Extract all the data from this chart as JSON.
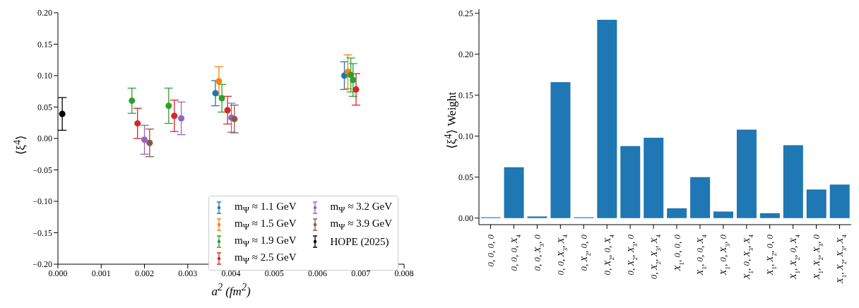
{
  "chart_data": [
    {
      "type": "scatter",
      "xlabel": "a$^{2}$ (fm$^{2}$)",
      "ylabel": "⟨ξ$^{4}$⟩",
      "xlim": [
        0,
        0.008
      ],
      "ylim": [
        -0.2,
        0.2
      ],
      "xticks": [
        {
          "value": 0,
          "label": "0.000"
        },
        {
          "value": 0.001,
          "label": "0.001"
        },
        {
          "value": 0.002,
          "label": "0.002"
        },
        {
          "value": 0.003,
          "label": "0.003"
        },
        {
          "value": 0.004,
          "label": "0.004"
        },
        {
          "value": 0.005,
          "label": "0.005"
        },
        {
          "value": 0.006,
          "label": "0.006"
        },
        {
          "value": 0.007,
          "label": "0.007"
        },
        {
          "value": 0.008,
          "label": "0.008"
        }
      ],
      "yticks": [
        {
          "value": -0.2,
          "label": "−0.20"
        },
        {
          "value": -0.15,
          "label": "−0.15"
        },
        {
          "value": -0.1,
          "label": "−0.10"
        },
        {
          "value": -0.05,
          "label": "−0.05"
        },
        {
          "value": 0,
          "label": "0.00"
        },
        {
          "value": 0.05,
          "label": "0.05"
        },
        {
          "value": 0.1,
          "label": "0.10"
        },
        {
          "value": 0.15,
          "label": "0.15"
        },
        {
          "value": 0.2,
          "label": "0.20"
        }
      ],
      "grid": false,
      "legend": "bottom right",
      "marker": "circle",
      "series": [
        {
          "name": "m$_{Ψ}$ ≈ 1.1 GeV",
          "color": "#1f77b4",
          "x": [
            0.00364,
            0.00662
          ],
          "values": [
            0.072,
            0.1
          ],
          "errors": [
            0.02,
            0.022
          ]
        },
        {
          "name": "m$_{Ψ}$ ≈ 1.5 GeV",
          "color": "#ff7f0e",
          "x": [
            0.00372,
            0.0067
          ],
          "values": [
            0.091,
            0.106
          ],
          "errors": [
            0.023,
            0.027
          ]
        },
        {
          "name": "m$_{Ψ}$ ≈ 1.9 GeV",
          "color": "#2ca02c",
          "x": [
            0.00171,
            0.00256,
            0.00379,
            0.00677,
            0.00682
          ],
          "values": [
            0.06,
            0.052,
            0.064,
            0.101,
            0.093
          ],
          "errors": [
            0.02,
            0.028,
            0.022,
            0.027,
            0.026
          ]
        },
        {
          "name": "m$_{Ψ}$ ≈ 2.5 GeV",
          "color": "#d62728",
          "x": [
            0.00184,
            0.00269,
            0.00392,
            0.00689
          ],
          "values": [
            0.024,
            0.036,
            0.045,
            0.078
          ],
          "errors": [
            0.024,
            0.025,
            0.022,
            0.025
          ]
        },
        {
          "name": "m$_{Ψ}$ ≈ 3.2 GeV",
          "color": "#9467bd",
          "x": [
            0.002,
            0.00285,
            0.00401
          ],
          "values": [
            -0.002,
            0.032,
            0.033
          ],
          "errors": [
            0.023,
            0.026,
            0.023
          ]
        },
        {
          "name": "m$_{Ψ}$ ≈ 3.9 GeV",
          "color": "#8c564b",
          "x": [
            0.00212,
            0.00408
          ],
          "values": [
            -0.007,
            0.031
          ],
          "errors": [
            0.022,
            0.022
          ]
        },
        {
          "name": "HOPE (2025)",
          "color": "#000000",
          "x": [
            0.0001
          ],
          "values": [
            0.039
          ],
          "errors": [
            0.026
          ]
        }
      ]
    },
    {
      "type": "bar",
      "ylabel": "⟨ξ$^{4}$⟩ Weight",
      "color": "#1f77b4",
      "grid": false,
      "categories": [
        "0, 0, 0, 0",
        "0, 0, 0, X$_{4}$",
        "0, 0, X$_{3}$, 0",
        "0, 0, X$_{3}$, X$_{4}$",
        "0, X$_{2}$, 0, 0",
        "0, X$_{2}$, 0, X$_{4}$",
        "0, X$_{2}$, X$_{3}$, 0",
        "0, X$_{2}$, X$_{3}$, X$_{4}$",
        "X$_{1}$, 0, 0, 0",
        "X$_{1}$, 0, 0, X$_{4}$",
        "X$_{1}$, 0, X$_{3}$, 0",
        "X$_{1}$, 0, X$_{3}$, X$_{4}$",
        "X$_{1}$, X$_{2}$, 0, 0",
        "X$_{1}$, X$_{2}$, 0, X$_{4}$",
        "X$_{1}$, X$_{2}$, X$_{3}$, 0",
        "X$_{1}$, X$_{2}$, X$_{3}$, X$_{4}$"
      ],
      "values": [
        0.001,
        0.062,
        0.002,
        0.166,
        0.001,
        0.242,
        0.088,
        0.098,
        0.012,
        0.05,
        0.008,
        0.108,
        0.006,
        0.089,
        0.035,
        0.041
      ],
      "ylim": [
        -0.008,
        0.255
      ],
      "yticks": [
        {
          "value": 0,
          "label": "0.00"
        },
        {
          "value": 0.05,
          "label": "0.05"
        },
        {
          "value": 0.1,
          "label": "0.10"
        },
        {
          "value": 0.15,
          "label": "0.15"
        },
        {
          "value": 0.2,
          "label": "0.20"
        },
        {
          "value": 0.25,
          "label": "0.25"
        }
      ]
    }
  ]
}
